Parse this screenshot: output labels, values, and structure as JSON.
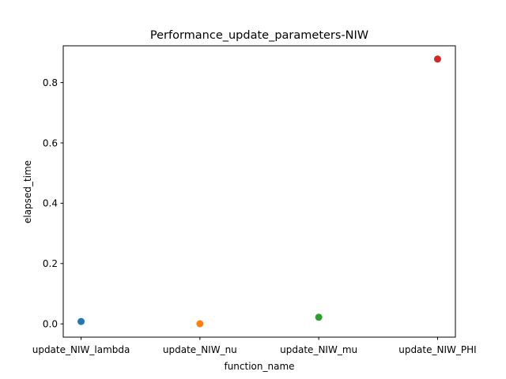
{
  "chart_data": {
    "type": "scatter",
    "title": "Performance_update_parameters-NIW",
    "xlabel": "function_name",
    "ylabel": "elapsed_time",
    "categories": [
      "update_NIW_lambda",
      "update_NIW_nu",
      "update_NIW_mu",
      "update_NIW_PHI"
    ],
    "values": [
      0.008,
      0.0005,
      0.022,
      0.878
    ],
    "colors": [
      "#1f77b4",
      "#ff7f0e",
      "#2ca02c",
      "#d62728"
    ],
    "ylim": [
      -0.044,
      0.922
    ],
    "yticks": [
      0.0,
      0.2,
      0.4,
      0.6,
      0.8
    ],
    "ytick_labels": [
      "0.0",
      "0.2",
      "0.4",
      "0.6",
      "0.8"
    ],
    "grid": false,
    "legend": "none"
  }
}
